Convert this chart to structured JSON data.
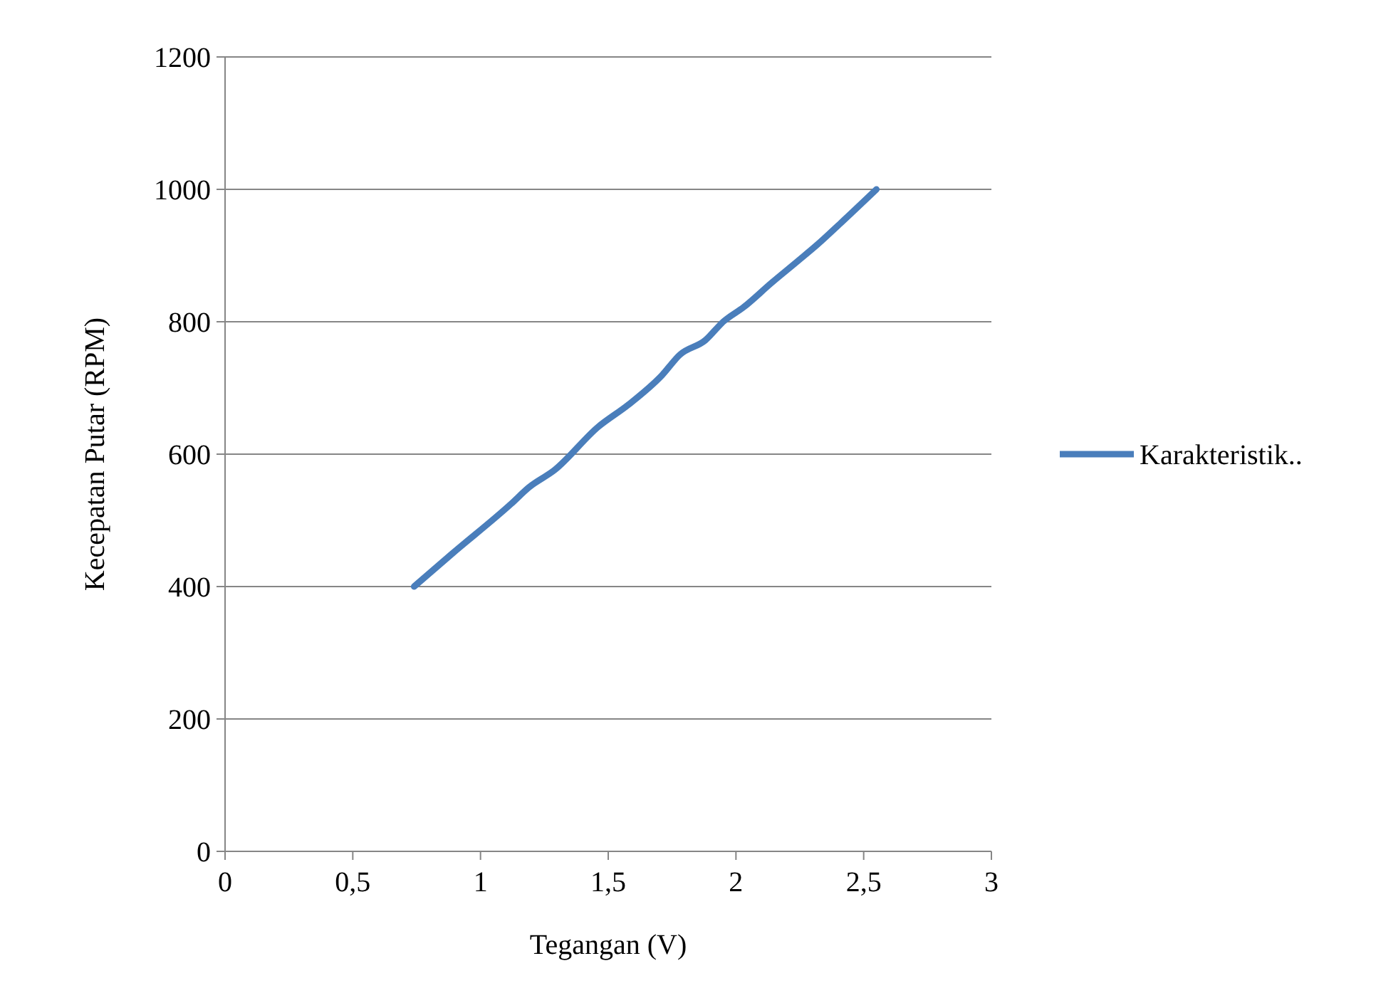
{
  "chart_data": {
    "type": "line",
    "xlabel": "Tegangan (V)",
    "ylabel": "Kecepatan Putar (RPM)",
    "xlim": [
      0,
      3
    ],
    "xticks": [
      0,
      {
        "value": 0.5,
        "label": "0,5"
      },
      1,
      {
        "value": 1.5,
        "label": "1,5"
      },
      2,
      {
        "value": 2.5,
        "label": "2,5"
      },
      3
    ],
    "ylim": [
      0,
      1200
    ],
    "yticks": [
      0,
      200,
      400,
      600,
      800,
      1000,
      1200
    ],
    "grid": "y",
    "legend": "right",
    "marker": "none",
    "line_style": "solid",
    "series": [
      {
        "name": "Karakteristik..",
        "color": "#4a7ebb",
        "x": [
          0.74,
          0.89,
          1.12,
          1.19,
          1.29,
          1.46,
          1.58,
          1.71,
          1.78,
          1.88,
          1.95,
          2.03,
          2.14,
          2.24,
          2.32,
          2.41,
          2.55
        ],
        "values": [
          400,
          450,
          525,
          550,
          576,
          641,
          675,
          719,
          750,
          772,
          800,
          822,
          859,
          891,
          917,
          949,
          1000
        ]
      }
    ]
  }
}
